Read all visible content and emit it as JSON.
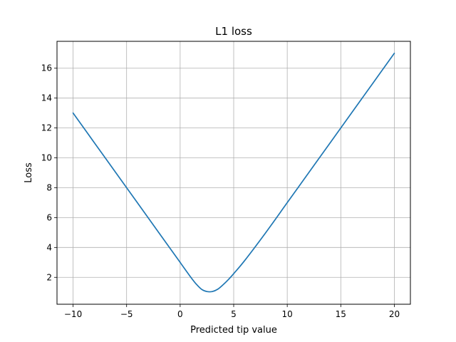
{
  "chart_data": {
    "type": "line",
    "title": "L1 loss",
    "xlabel": "Predicted tip value",
    "ylabel": "Loss",
    "xlim": [
      -11.5,
      21.5
    ],
    "ylim": [
      0.2,
      17.8
    ],
    "xticks": [
      -10,
      -5,
      0,
      5,
      10,
      15,
      20
    ],
    "xtick_labels": [
      "−10",
      "−5",
      "0",
      "5",
      "10",
      "15",
      "20"
    ],
    "yticks": [
      2,
      4,
      6,
      8,
      10,
      12,
      14,
      16
    ],
    "ytick_labels": [
      "2",
      "4",
      "6",
      "8",
      "10",
      "12",
      "14",
      "16"
    ],
    "grid": true,
    "series": [
      {
        "color": "#1f77b4",
        "x": [
          -10,
          -8,
          -6,
          -4,
          -2,
          0,
          1,
          1.5,
          2,
          2.5,
          3,
          3.5,
          4,
          4.5,
          5,
          6,
          8,
          10,
          12,
          14,
          16,
          18,
          20
        ],
        "y": [
          13,
          11,
          9,
          7,
          5,
          3,
          2,
          1.55,
          1.2,
          1.05,
          1.05,
          1.2,
          1.5,
          1.85,
          2.25,
          3.1,
          5,
          7,
          9,
          11,
          13,
          15,
          17
        ]
      }
    ]
  }
}
